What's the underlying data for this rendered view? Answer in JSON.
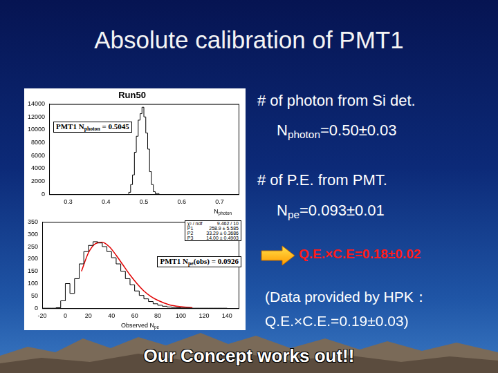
{
  "slide": {
    "title": "Absolute calibration of PMT1",
    "lines": [
      [
        {
          "t": "# of photon from Si det."
        }
      ],
      [
        {
          "t": "N"
        },
        {
          "sub": "photon"
        },
        {
          "t": "=0.50±0.03"
        }
      ],
      [
        {
          "t": "# of P.E. from PMT."
        }
      ],
      [
        {
          "t": "N"
        },
        {
          "sub": "pe"
        },
        {
          "t": "=0.093±0.01"
        }
      ]
    ],
    "result": {
      "text": "Q.E.×C.E=0.18±0.02",
      "color": "#ff1a1a"
    },
    "note": [
      "(Data provided by HPK：",
      "Q.E.×C.E.=0.19±0.03)"
    ],
    "footer": "Our Concept works out!!"
  },
  "chart_data": [
    {
      "type": "histogram",
      "title": "Run50",
      "bins": [
        0.46,
        0.465,
        0.47,
        0.475,
        0.48,
        0.485,
        0.49,
        0.495,
        0.5,
        0.505,
        0.51,
        0.515,
        0.52,
        0.525,
        0.53,
        0.535,
        0.54
      ],
      "values": [
        100,
        300,
        1500,
        3000,
        6500,
        9000,
        11500,
        12500,
        13500,
        12000,
        9500,
        7000,
        3500,
        1500,
        400,
        100
      ],
      "color": "#000000",
      "xlim": [
        0.25,
        0.75
      ],
      "xticks": [
        0.3,
        0.4,
        0.5,
        0.6,
        0.7
      ],
      "ylim": [
        0,
        14000
      ],
      "yticks": [
        0,
        2000,
        4000,
        6000,
        8000,
        10000,
        12000,
        14000
      ],
      "grid": false,
      "x_label": [
        {
          "t": "N"
        },
        {
          "sub": "photon"
        }
      ],
      "annotations": [
        [
          {
            "t": "PMT1 N"
          },
          {
            "sub": "photon"
          },
          {
            "t": " = 0.5045"
          }
        ]
      ]
    },
    {
      "type": "histogram",
      "bins": [
        -20,
        -16,
        -12,
        -8,
        -4,
        0,
        4,
        8,
        12,
        16,
        20,
        24,
        28,
        32,
        36,
        40,
        44,
        48,
        52,
        56,
        60,
        64,
        68,
        72,
        76,
        80,
        84,
        88,
        92,
        96,
        100,
        104,
        108,
        112,
        116,
        120,
        124,
        128,
        132,
        136,
        140
      ],
      "values": [
        0,
        0,
        0,
        0,
        2,
        30,
        100,
        60,
        120,
        180,
        230,
        255,
        270,
        265,
        250,
        230,
        205,
        180,
        150,
        120,
        95,
        70,
        52,
        38,
        27,
        18,
        12,
        8,
        5,
        3,
        2,
        1,
        1,
        0,
        0,
        0,
        0,
        0,
        0,
        0
      ],
      "color": "#000000",
      "fit": {
        "type": "line",
        "color": "#e00000",
        "x": [
          14,
          20,
          26,
          32,
          38,
          44,
          50,
          56,
          62,
          68,
          74,
          80,
          90,
          100,
          110
        ],
        "values": [
          150,
          225,
          262,
          268,
          250,
          215,
          175,
          135,
          100,
          70,
          48,
          32,
          14,
          6,
          2
        ]
      },
      "xlim": [
        -20,
        150
      ],
      "xticks": [
        -20,
        0,
        20,
        40,
        60,
        80,
        100,
        120,
        140
      ],
      "ylim": [
        0,
        350
      ],
      "yticks": [
        0,
        50,
        100,
        150,
        200,
        250,
        300,
        350
      ],
      "grid": false,
      "x_label": [
        {
          "t": "Observed N"
        },
        {
          "sub": "pe"
        }
      ],
      "stats": [
        [
          "χ² / ndf",
          "9.462 / 10"
        ],
        [
          "P1",
          "258.9 ± 5.585"
        ],
        [
          "P2",
          "33.29 ± 0.3686"
        ],
        [
          "P3",
          "14.00 ± 0.4903"
        ]
      ],
      "annotations": [
        [
          {
            "t": "PMT1 N"
          },
          {
            "sub": "pe"
          },
          {
            "t": "(obs) = 0.0926"
          }
        ]
      ]
    }
  ]
}
